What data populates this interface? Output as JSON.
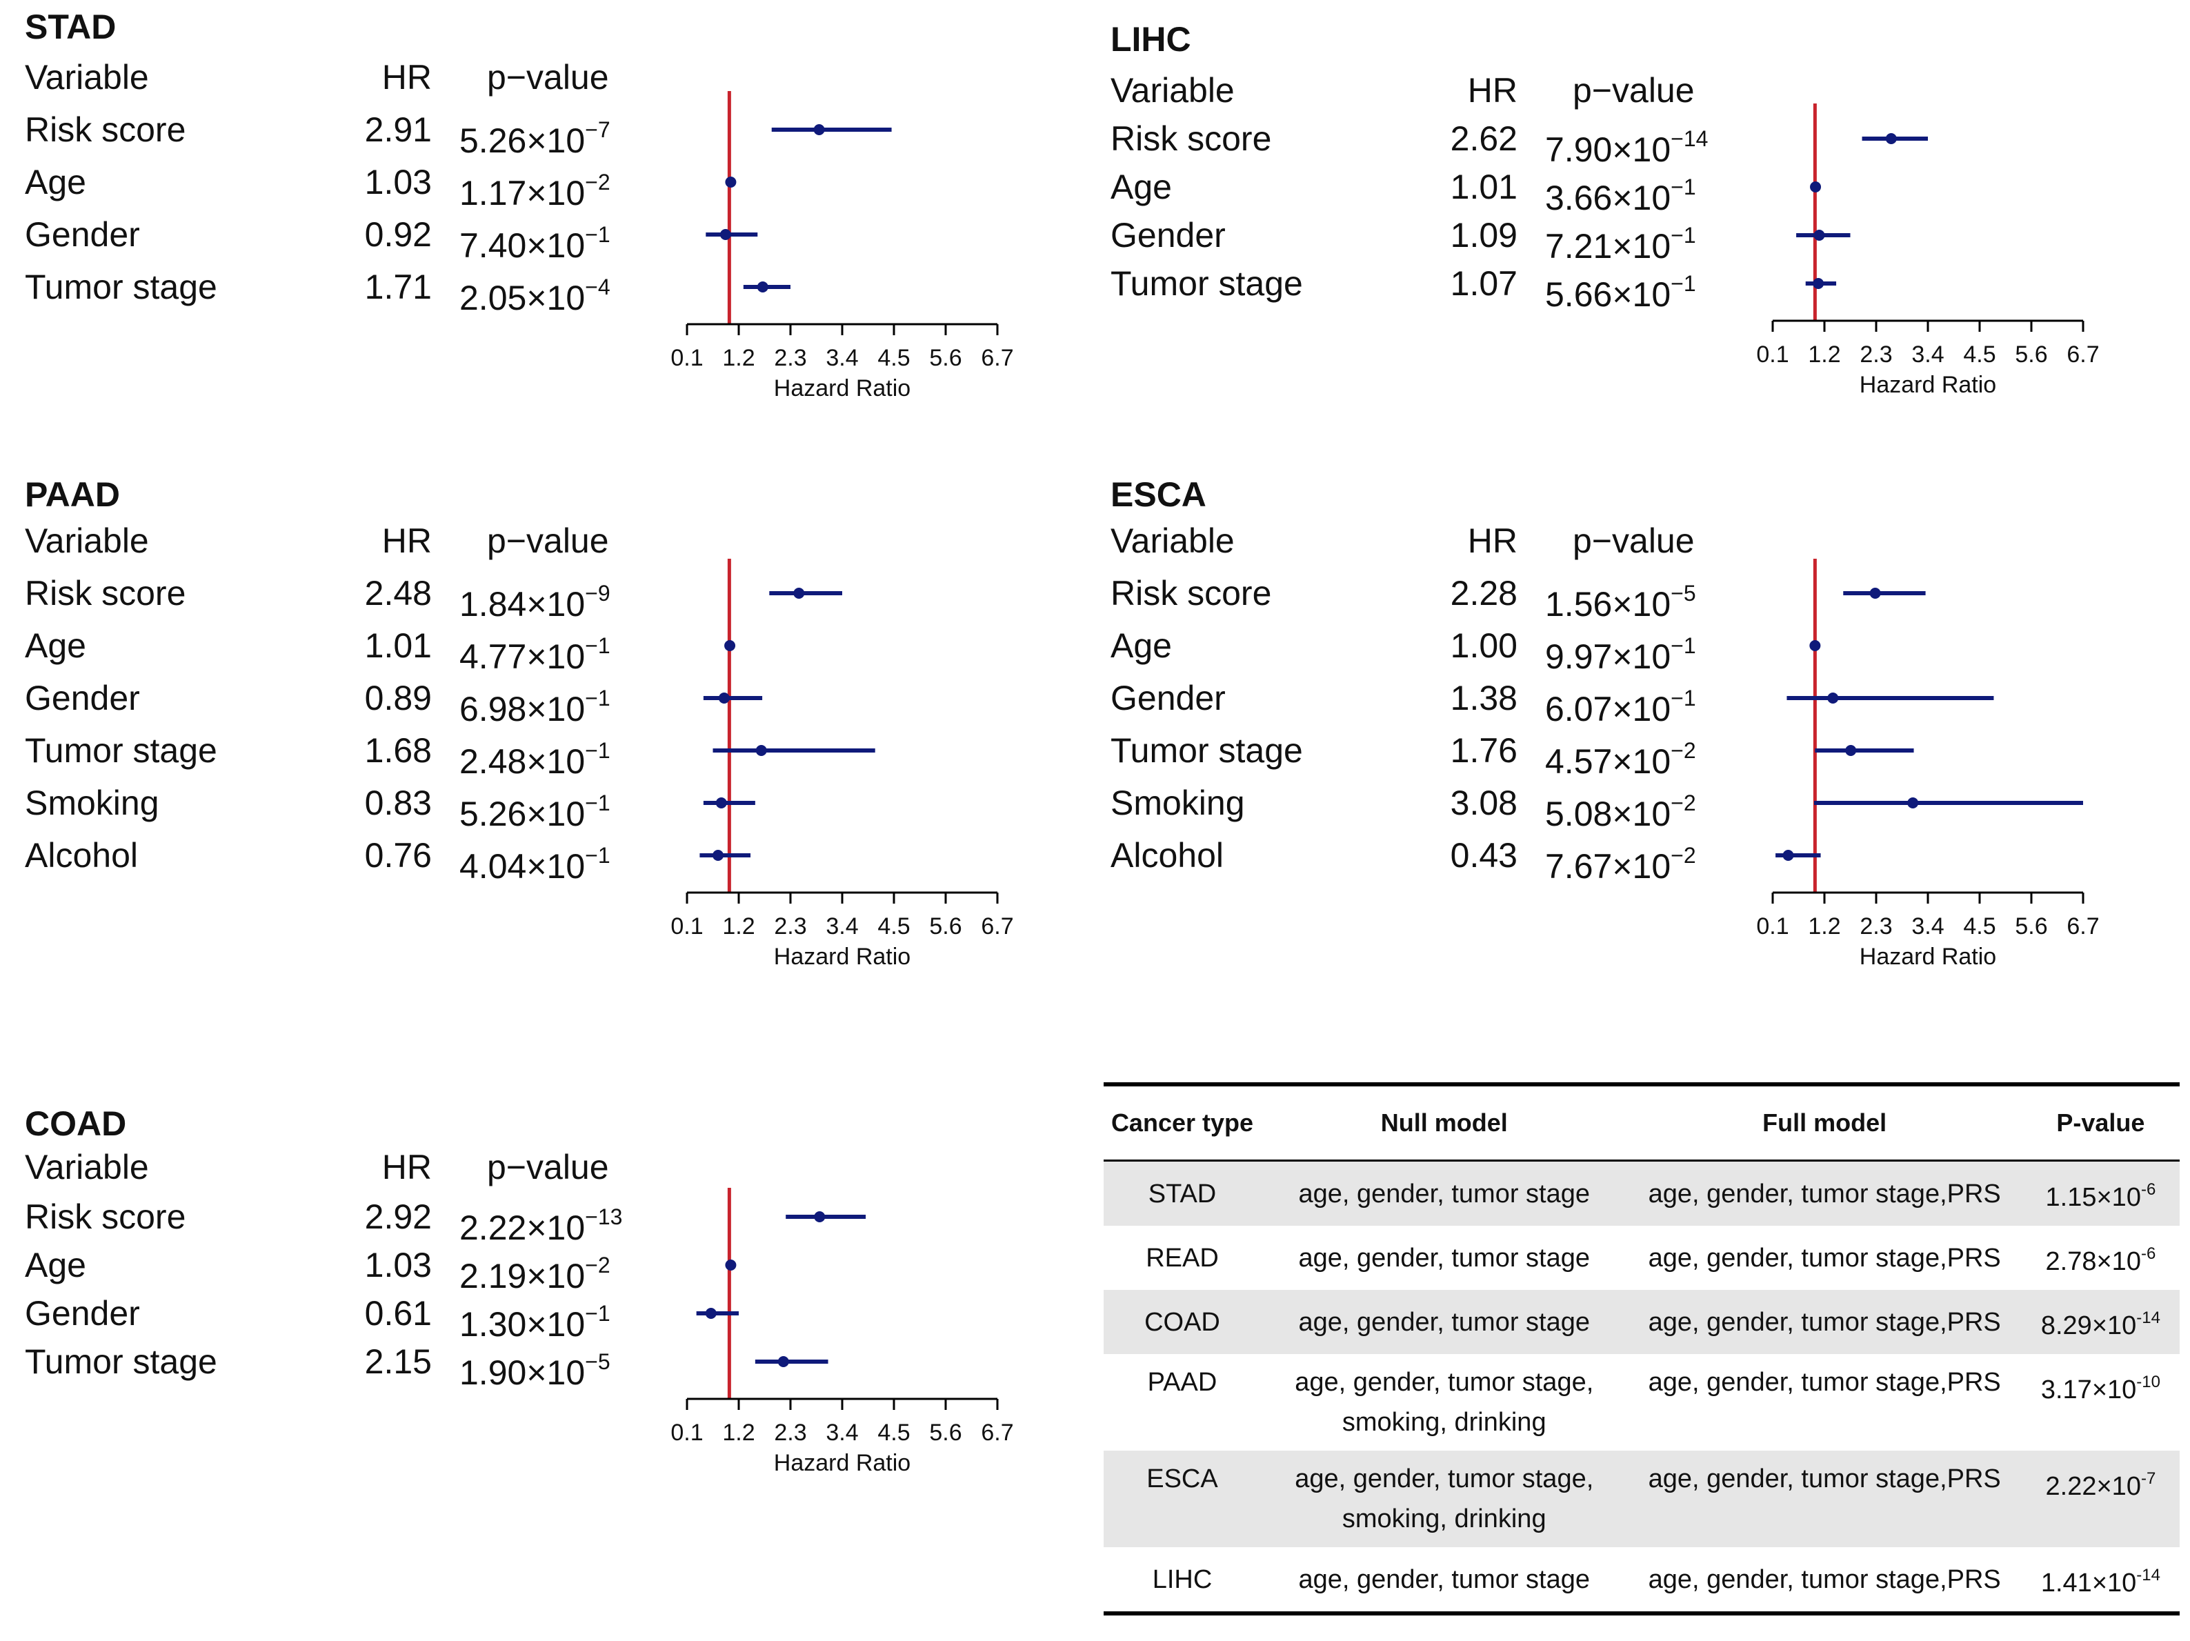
{
  "colors": {
    "ref_line": "#c8232c",
    "point": "#0f1a7a",
    "ci": "#0f1a7a",
    "axis": "#000000",
    "row_shade": "#e6e6e6"
  },
  "chart_data": [
    {
      "type": "forest",
      "title": "STAD",
      "xlabel": "Hazard Ratio",
      "xlim": [
        0.1,
        6.7
      ],
      "xticks": [
        0.1,
        1.2,
        2.3,
        3.4,
        4.5,
        5.6,
        6.7
      ],
      "ref": 1,
      "headers": [
        "Variable",
        "HR",
        "p−value"
      ],
      "rows": [
        {
          "variable": "Risk score",
          "hr_text": "2.91",
          "hr": 2.91,
          "lo": 1.9,
          "hi": 4.45,
          "p_mant": "5.26×10",
          "p_exp": "−7"
        },
        {
          "variable": "Age",
          "hr_text": "1.03",
          "hr": 1.03,
          "lo": 1.0,
          "hi": 1.06,
          "p_mant": "1.17×10",
          "p_exp": "−2"
        },
        {
          "variable": "Gender",
          "hr_text": "0.92",
          "hr": 0.92,
          "lo": 0.5,
          "hi": 1.6,
          "p_mant": "7.40×10",
          "p_exp": "−1"
        },
        {
          "variable": "Tumor stage",
          "hr_text": "1.71",
          "hr": 1.71,
          "lo": 1.3,
          "hi": 2.3,
          "p_mant": "2.05×10",
          "p_exp": "−4"
        }
      ]
    },
    {
      "type": "forest",
      "title": "LIHC",
      "xlabel": "Hazard Ratio",
      "xlim": [
        0.1,
        6.7
      ],
      "xticks": [
        0.1,
        1.2,
        2.3,
        3.4,
        4.5,
        5.6,
        6.7
      ],
      "ref": 1,
      "headers": [
        "Variable",
        "HR",
        "p−value"
      ],
      "rows": [
        {
          "variable": "Risk score",
          "hr_text": "2.62",
          "hr": 2.62,
          "lo": 2.0,
          "hi": 3.4,
          "p_mant": "7.90×10",
          "p_exp": "−14"
        },
        {
          "variable": "Age",
          "hr_text": "1.01",
          "hr": 1.01,
          "lo": 0.99,
          "hi": 1.03,
          "p_mant": "3.66×10",
          "p_exp": "−1"
        },
        {
          "variable": "Gender",
          "hr_text": "1.09",
          "hr": 1.09,
          "lo": 0.6,
          "hi": 1.75,
          "p_mant": "7.21×10",
          "p_exp": "−1"
        },
        {
          "variable": "Tumor stage",
          "hr_text": "1.07",
          "hr": 1.07,
          "lo": 0.8,
          "hi": 1.45,
          "p_mant": "5.66×10",
          "p_exp": "−1"
        }
      ]
    },
    {
      "type": "forest",
      "title": "PAAD",
      "xlabel": "Hazard Ratio",
      "xlim": [
        0.1,
        6.7
      ],
      "xticks": [
        0.1,
        1.2,
        2.3,
        3.4,
        4.5,
        5.6,
        6.7
      ],
      "ref": 1,
      "headers": [
        "Variable",
        "HR",
        "p−value"
      ],
      "rows": [
        {
          "variable": "Risk score",
          "hr_text": "2.48",
          "hr": 2.48,
          "lo": 1.85,
          "hi": 3.4,
          "p_mant": "1.84×10",
          "p_exp": "−9"
        },
        {
          "variable": "Age",
          "hr_text": "1.01",
          "hr": 1.01,
          "lo": 0.98,
          "hi": 1.04,
          "p_mant": "4.77×10",
          "p_exp": "−1"
        },
        {
          "variable": "Gender",
          "hr_text": "0.89",
          "hr": 0.89,
          "lo": 0.45,
          "hi": 1.7,
          "p_mant": "6.98×10",
          "p_exp": "−1"
        },
        {
          "variable": "Tumor stage",
          "hr_text": "1.68",
          "hr": 1.68,
          "lo": 0.65,
          "hi": 4.1,
          "p_mant": "2.48×10",
          "p_exp": "−1"
        },
        {
          "variable": "Smoking",
          "hr_text": "0.83",
          "hr": 0.83,
          "lo": 0.45,
          "hi": 1.55,
          "p_mant": "5.26×10",
          "p_exp": "−1"
        },
        {
          "variable": "Alcohol",
          "hr_text": "0.76",
          "hr": 0.76,
          "lo": 0.37,
          "hi": 1.45,
          "p_mant": "4.04×10",
          "p_exp": "−1"
        }
      ]
    },
    {
      "type": "forest",
      "title": "ESCA",
      "xlabel": "Hazard Ratio",
      "xlim": [
        0.1,
        6.7
      ],
      "xticks": [
        0.1,
        1.2,
        2.3,
        3.4,
        4.5,
        5.6,
        6.7
      ],
      "ref": 1,
      "headers": [
        "Variable",
        "HR",
        "p−value"
      ],
      "rows": [
        {
          "variable": "Risk score",
          "hr_text": "2.28",
          "hr": 2.28,
          "lo": 1.6,
          "hi": 3.35,
          "p_mant": "1.56×10",
          "p_exp": "−5"
        },
        {
          "variable": "Age",
          "hr_text": "1.00",
          "hr": 1.0,
          "lo": 0.98,
          "hi": 1.02,
          "p_mant": "9.97×10",
          "p_exp": "−1"
        },
        {
          "variable": "Gender",
          "hr_text": "1.38",
          "hr": 1.38,
          "lo": 0.4,
          "hi": 4.8,
          "p_mant": "6.07×10",
          "p_exp": "−1"
        },
        {
          "variable": "Tumor stage",
          "hr_text": "1.76",
          "hr": 1.76,
          "lo": 1.0,
          "hi": 3.1,
          "p_mant": "4.57×10",
          "p_exp": "−2"
        },
        {
          "variable": "Smoking",
          "hr_text": "3.08",
          "hr": 3.08,
          "lo": 0.98,
          "hi": 6.7,
          "p_mant": "5.08×10",
          "p_exp": "−2"
        },
        {
          "variable": "Alcohol",
          "hr_text": "0.43",
          "hr": 0.43,
          "lo": 0.16,
          "hi": 1.12,
          "p_mant": "7.67×10",
          "p_exp": "−2"
        }
      ]
    },
    {
      "type": "forest",
      "title": "COAD",
      "xlabel": "Hazard Ratio",
      "xlim": [
        0.1,
        6.7
      ],
      "xticks": [
        0.1,
        1.2,
        2.3,
        3.4,
        4.5,
        5.6,
        6.7
      ],
      "ref": 1,
      "headers": [
        "Variable",
        "HR",
        "p−value"
      ],
      "rows": [
        {
          "variable": "Risk score",
          "hr_text": "2.92",
          "hr": 2.92,
          "lo": 2.2,
          "hi": 3.9,
          "p_mant": "2.22×10",
          "p_exp": "−13"
        },
        {
          "variable": "Age",
          "hr_text": "1.03",
          "hr": 1.03,
          "lo": 1.0,
          "hi": 1.06,
          "p_mant": "2.19×10",
          "p_exp": "−2"
        },
        {
          "variable": "Gender",
          "hr_text": "0.61",
          "hr": 0.61,
          "lo": 0.3,
          "hi": 1.2,
          "p_mant": "1.30×10",
          "p_exp": "−1"
        },
        {
          "variable": "Tumor stage",
          "hr_text": "2.15",
          "hr": 2.15,
          "lo": 1.55,
          "hi": 3.1,
          "p_mant": "1.90×10",
          "p_exp": "−5"
        }
      ]
    }
  ],
  "table": {
    "headers": [
      "Cancer type",
      "Null model",
      "Full model",
      "P-value"
    ],
    "rows": [
      {
        "cancer": "STAD",
        "null_l1": "age, gender, tumor stage",
        "null_l2": "",
        "full": "age, gender, tumor stage,PRS",
        "p_mant": "1.15×10",
        "p_exp": "-6"
      },
      {
        "cancer": "READ",
        "null_l1": "age, gender, tumor stage",
        "null_l2": "",
        "full": "age, gender, tumor stage,PRS",
        "p_mant": "2.78×10",
        "p_exp": "-6"
      },
      {
        "cancer": "COAD",
        "null_l1": "age, gender, tumor stage",
        "null_l2": "",
        "full": "age, gender, tumor stage,PRS",
        "p_mant": "8.29×10",
        "p_exp": "-14"
      },
      {
        "cancer": "PAAD",
        "null_l1": "age, gender, tumor stage,",
        "null_l2": "smoking, drinking",
        "full": "age, gender, tumor stage,PRS",
        "p_mant": "3.17×10",
        "p_exp": "-10"
      },
      {
        "cancer": "ESCA",
        "null_l1": "age, gender, tumor stage,",
        "null_l2": "smoking, drinking",
        "full": "age, gender, tumor stage,PRS",
        "p_mant": "2.22×10",
        "p_exp": "-7"
      },
      {
        "cancer": "LIHC",
        "null_l1": "age, gender, tumor stage",
        "null_l2": "",
        "full": "age, gender, tumor stage,PRS",
        "p_mant": "1.41×10",
        "p_exp": "-14"
      }
    ]
  }
}
